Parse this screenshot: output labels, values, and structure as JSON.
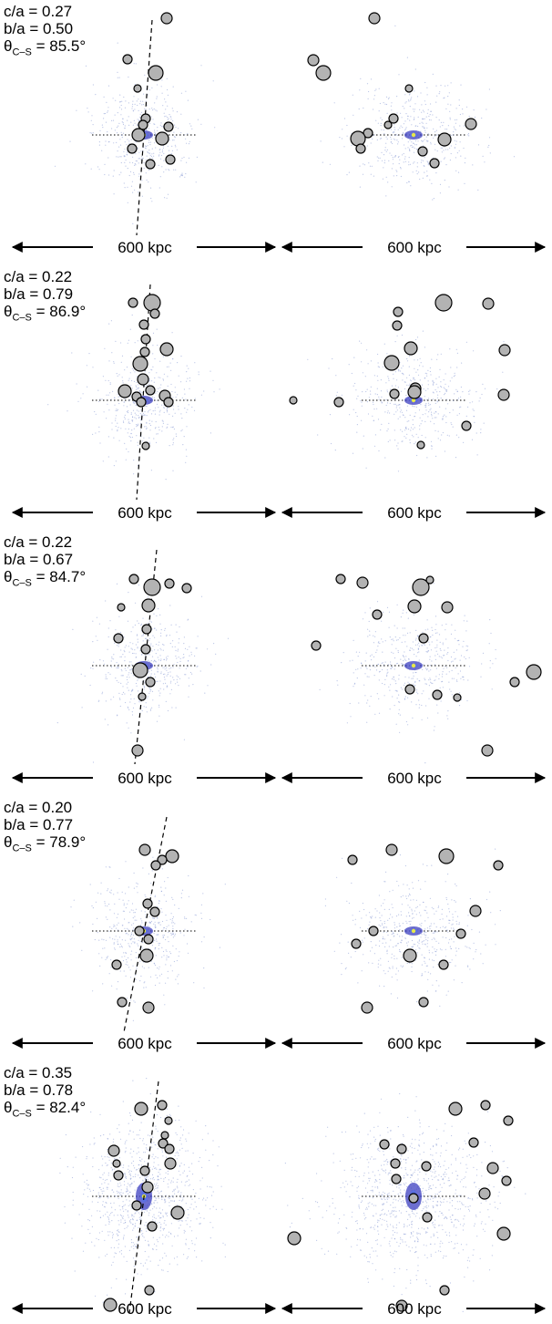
{
  "scale_label": "600 kpc",
  "colors": {
    "satellite_fill": "#b3b3b3",
    "satellite_stroke": "#000000",
    "halo_points": "#8d9fd6",
    "core": "#3c3fc0",
    "center": "#e6e84a"
  },
  "panels": [
    {
      "ca": "c/a = 0.27",
      "ba": "b/a = 0.50",
      "theta_prefix": "θ",
      "theta_sub": "C–S",
      "theta_value": " = 85.5°",
      "left_sats": [
        [
          183,
          20,
          6
        ],
        [
          140,
          65,
          5
        ],
        [
          171,
          80,
          8
        ],
        [
          151,
          97,
          4
        ],
        [
          160,
          130,
          5
        ],
        [
          185,
          139,
          5
        ],
        [
          157,
          137,
          5
        ],
        [
          152,
          148,
          7
        ],
        [
          178,
          152,
          7
        ],
        [
          145,
          163,
          5
        ],
        [
          165,
          180,
          5
        ],
        [
          187,
          175,
          5
        ]
      ],
      "right_sats": [
        [
          411,
          20,
          6
        ],
        [
          344,
          66,
          6
        ],
        [
          355,
          80,
          8
        ],
        [
          449,
          97,
          4
        ],
        [
          432,
          130,
          5
        ],
        [
          426,
          137,
          4
        ],
        [
          404,
          146,
          5
        ],
        [
          393,
          152,
          8
        ],
        [
          488,
          153,
          7
        ],
        [
          517,
          136,
          6
        ],
        [
          396,
          163,
          5
        ],
        [
          464,
          166,
          5
        ],
        [
          477,
          179,
          5
        ]
      ]
    },
    {
      "ca": "c/a = 0.22",
      "ba": "b/a = 0.79",
      "theta_prefix": "θ",
      "theta_sub": "C–S",
      "theta_value": " = 86.9°",
      "left_sats": [
        [
          167,
          332,
          9
        ],
        [
          146,
          332,
          5
        ],
        [
          170,
          344,
          5
        ],
        [
          158,
          356,
          5
        ],
        [
          183,
          383,
          7
        ],
        [
          160,
          372,
          5
        ],
        [
          159,
          386,
          5
        ],
        [
          154,
          399,
          8
        ],
        [
          157,
          416,
          6
        ],
        [
          137,
          429,
          7
        ],
        [
          150,
          435,
          5
        ],
        [
          165,
          428,
          5
        ],
        [
          181,
          434,
          6
        ],
        [
          155,
          441,
          5
        ],
        [
          185,
          441,
          5
        ],
        [
          160,
          489,
          4
        ]
      ],
      "right_sats": [
        [
          487,
          332,
          9
        ],
        [
          536,
          333,
          6
        ],
        [
          437,
          342,
          5
        ],
        [
          436,
          357,
          5
        ],
        [
          451,
          382,
          7
        ],
        [
          554,
          384,
          6
        ],
        [
          430,
          398,
          8
        ],
        [
          456,
          426,
          6
        ],
        [
          433,
          432,
          5
        ],
        [
          455,
          430,
          7
        ],
        [
          553,
          433,
          6
        ],
        [
          322,
          439,
          4
        ],
        [
          372,
          441,
          5
        ],
        [
          512,
          467,
          5
        ],
        [
          462,
          488,
          4
        ]
      ]
    },
    {
      "ca": "c/a = 0.22",
      "ba": "b/a = 0.67",
      "theta_prefix": "θ",
      "theta_sub": "C–S",
      "theta_value": " = 84.7°",
      "left_sats": [
        [
          147,
          635,
          5
        ],
        [
          167,
          644,
          9
        ],
        [
          186,
          640,
          5
        ],
        [
          205,
          645,
          5
        ],
        [
          163,
          664,
          7
        ],
        [
          133,
          666,
          4
        ],
        [
          161,
          690,
          5
        ],
        [
          130,
          700,
          5
        ],
        [
          160,
          712,
          5
        ],
        [
          154,
          735,
          8
        ],
        [
          165,
          748,
          5
        ],
        [
          156,
          764,
          4
        ],
        [
          151,
          823,
          6
        ]
      ],
      "right_sats": [
        [
          374,
          635,
          5
        ],
        [
          398,
          639,
          6
        ],
        [
          462,
          644,
          9
        ],
        [
          472,
          636,
          4
        ],
        [
          491,
          666,
          6
        ],
        [
          455,
          665,
          7
        ],
        [
          414,
          674,
          5
        ],
        [
          465,
          700,
          5
        ],
        [
          347,
          708,
          5
        ],
        [
          586,
          737,
          8
        ],
        [
          565,
          748,
          5
        ],
        [
          450,
          756,
          5
        ],
        [
          480,
          762,
          5
        ],
        [
          502,
          765,
          4
        ],
        [
          535,
          823,
          6
        ]
      ]
    },
    {
      "ca": "c/a = 0.20",
      "ba": "b/a = 0.77",
      "theta_prefix": "θ",
      "theta_sub": "C–S",
      "theta_value": " = 78.9°",
      "left_sats": [
        [
          159,
          932,
          6
        ],
        [
          189,
          939,
          7
        ],
        [
          178,
          943,
          5
        ],
        [
          171,
          949,
          5
        ],
        [
          162,
          991,
          5
        ],
        [
          170,
          1000,
          5
        ],
        [
          153,
          1021,
          5
        ],
        [
          163,
          1030,
          5
        ],
        [
          161,
          1048,
          7
        ],
        [
          128,
          1058,
          5
        ],
        [
          134,
          1099,
          5
        ],
        [
          163,
          1105,
          6
        ]
      ],
      "right_sats": [
        [
          430,
          932,
          6
        ],
        [
          490,
          939,
          8
        ],
        [
          387,
          943,
          5
        ],
        [
          547,
          949,
          5
        ],
        [
          522,
          999,
          6
        ],
        [
          410,
          1021,
          5
        ],
        [
          506,
          1024,
          5
        ],
        [
          391,
          1035,
          5
        ],
        [
          450,
          1048,
          7
        ],
        [
          487,
          1058,
          5
        ],
        [
          403,
          1105,
          6
        ],
        [
          465,
          1099,
          5
        ]
      ]
    },
    {
      "ca": "c/a = 0.35",
      "ba": "b/a = 0.78",
      "theta_prefix": "θ",
      "theta_sub": "C–S",
      "theta_value": " = 82.4°",
      "left_sats": [
        [
          178,
          1212,
          5
        ],
        [
          155,
          1216,
          7
        ],
        [
          185,
          1229,
          4
        ],
        [
          181,
          1245,
          4
        ],
        [
          125,
          1262,
          6
        ],
        [
          179,
          1254,
          5
        ],
        [
          186,
          1260,
          5
        ],
        [
          128,
          1276,
          4
        ],
        [
          187,
          1276,
          6
        ],
        [
          159,
          1284,
          5
        ],
        [
          130,
          1289,
          5
        ],
        [
          162,
          1302,
          6
        ],
        [
          150,
          1322,
          5
        ],
        [
          195,
          1330,
          7
        ],
        [
          167,
          1345,
          5
        ],
        [
          164,
          1415,
          5
        ],
        [
          121,
          1431,
          7
        ]
      ],
      "right_sats": [
        [
          500,
          1216,
          7
        ],
        [
          533,
          1212,
          5
        ],
        [
          558,
          1229,
          5
        ],
        [
          323,
          1358,
          7
        ],
        [
          520,
          1253,
          5
        ],
        [
          422,
          1255,
          5
        ],
        [
          441,
          1260,
          5
        ],
        [
          541,
          1281,
          6
        ],
        [
          468,
          1279,
          5
        ],
        [
          434,
          1276,
          5
        ],
        [
          556,
          1295,
          5
        ],
        [
          435,
          1293,
          5
        ],
        [
          532,
          1309,
          6
        ],
        [
          454,
          1314,
          5
        ],
        [
          553,
          1353,
          7
        ],
        [
          488,
          1415,
          5
        ],
        [
          441,
          1432,
          6
        ],
        [
          469,
          1335,
          5
        ]
      ]
    }
  ]
}
